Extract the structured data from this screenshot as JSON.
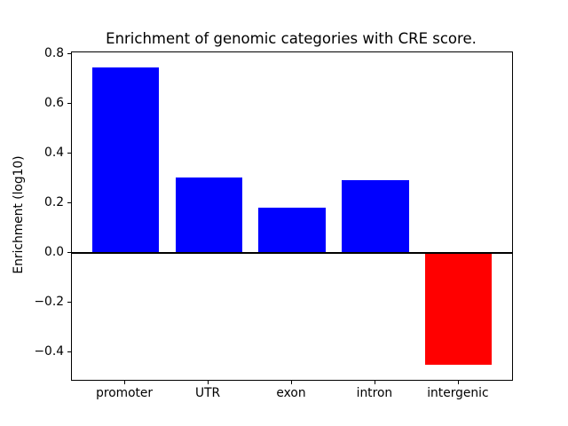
{
  "chart_data": {
    "type": "bar",
    "title": "Enrichment of genomic categories with CRE score.",
    "ylabel": "Enrichment (log10)",
    "xlabel": "",
    "categories": [
      "promoter",
      "UTR",
      "exon",
      "intron",
      "intergenic"
    ],
    "values": [
      0.745,
      0.303,
      0.182,
      0.295,
      -0.449
    ],
    "bar_colors": [
      "#0000ff",
      "#0000ff",
      "#0000ff",
      "#0000ff",
      "#ff0000"
    ],
    "positive_color": "#0000ff",
    "negative_color": "#ff0000",
    "ylim": [
      -0.509,
      0.807
    ],
    "yticks": [
      {
        "value": 0.8,
        "label": "0.8"
      },
      {
        "value": 0.6,
        "label": "0.6"
      },
      {
        "value": 0.4,
        "label": "0.4"
      },
      {
        "value": 0.2,
        "label": "0.2"
      },
      {
        "value": 0.0,
        "label": "0.0"
      },
      {
        "value": -0.2,
        "label": "−0.2"
      },
      {
        "value": -0.4,
        "label": "−0.4"
      }
    ],
    "bar_width": 0.8,
    "xlim": [
      -0.64,
      4.64
    ],
    "zero_line": true,
    "grid": false,
    "legend": false
  }
}
